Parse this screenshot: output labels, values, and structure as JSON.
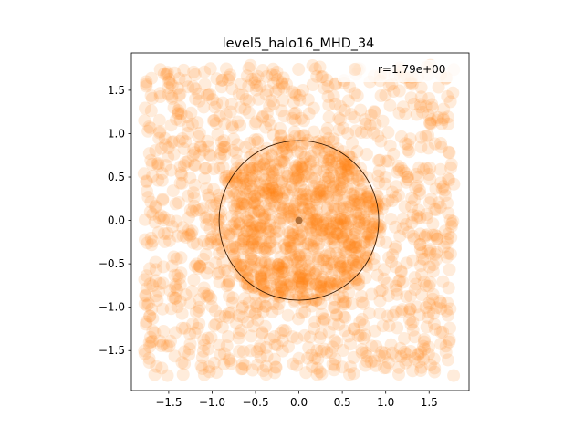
{
  "chart_data": {
    "type": "scatter",
    "title": "level5_halo16_MHD_34",
    "xlabel": "",
    "ylabel": "",
    "xlim": [
      -1.93,
      1.96
    ],
    "ylim": [
      -1.96,
      1.93
    ],
    "xticks": [
      -1.5,
      -1.0,
      -0.5,
      0.0,
      0.5,
      1.0,
      1.5
    ],
    "yticks": [
      -1.5,
      -1.0,
      -0.5,
      0.0,
      0.5,
      1.0,
      1.5
    ],
    "xtick_labels": [
      "−1.5",
      "−1.0",
      "−0.5",
      "0.0",
      "0.5",
      "1.0",
      "1.5"
    ],
    "ytick_labels": [
      "−1.5",
      "−1.0",
      "−0.5",
      "0.0",
      "0.5",
      "1.0",
      "1.5"
    ],
    "grid": false,
    "legend_position": "top-right",
    "legend_label": "r=1.79e+00",
    "series": [
      {
        "name": "r=1.79e+00",
        "color": "#ff7f0e",
        "alpha": 0.15,
        "note": "uniform cloud of ~2000 particles filling the square [-1.79, 1.79] x [-1.79, 1.79], denser toward the center",
        "extent": [
          -1.79,
          1.79
        ],
        "count": 2000
      }
    ],
    "circle": {
      "center": [
        0.0,
        0.0
      ],
      "radius": 0.92,
      "color": "#3a1a00"
    },
    "center_point": {
      "x": 0.0,
      "y": 0.0,
      "color": "#a0602a"
    }
  }
}
